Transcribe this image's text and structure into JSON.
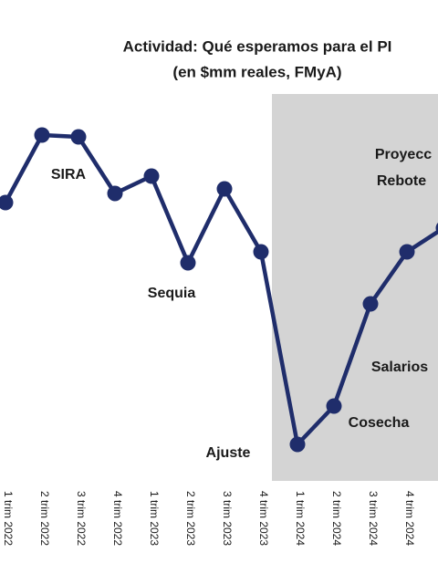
{
  "chart_data": {
    "type": "line",
    "title": "Actividad: Qué esperamos para el PI",
    "subtitle": "(en $mm reales, FMyA)",
    "categories": [
      "1 trim 2022",
      "2 trim 2022",
      "3 trim 2022",
      "4 trim 2022",
      "1 trim 2023",
      "2 trim 2023",
      "3 trim 2023",
      "4 trim 2023",
      "1 trim 2024",
      "2 trim 2024",
      "3 trim 2024",
      "4 trim 2024",
      null
    ],
    "series": [
      {
        "color": "#1f2d6b",
        "values": [
          278,
          352,
          350,
          288,
          307,
          212,
          293,
          224,
          13,
          55,
          167,
          224,
          250
        ]
      }
    ],
    "ylim": [
      0,
      400
    ],
    "annotations": [
      "SIRA",
      "Sequia",
      "Ajuste",
      "Cosecha",
      "Salarios",
      "Proyecc",
      "Rebote"
    ]
  }
}
